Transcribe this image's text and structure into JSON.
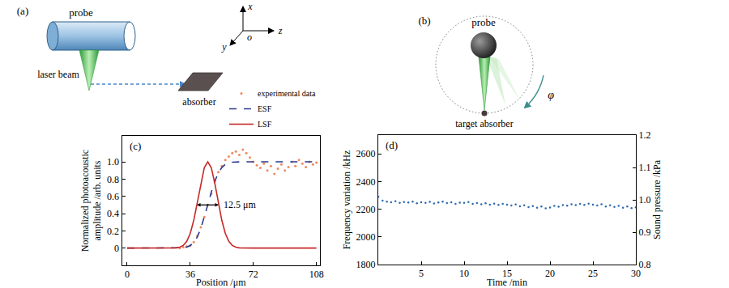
{
  "chart_data": [
    {
      "type": "line",
      "panel_label": "(c)",
      "x_label": "Position /μm",
      "y_label": "Normalized photoacoustic\namplitude /arb. units",
      "xlim": [
        -3,
        110
      ],
      "xticks": [
        0,
        36,
        72,
        108
      ],
      "ylim": [
        -0.2,
        1.3
      ],
      "yticks": [
        0,
        0.2,
        0.4,
        0.6,
        0.8,
        {
          "value": 1,
          "label": "1.0"
        }
      ],
      "grid": false,
      "legend": "top right",
      "series": [
        {
          "name": "experimental data",
          "type": "scatter",
          "marker": "dot",
          "color": "#f08a5d",
          "x": [
            30,
            32,
            34,
            36,
            38,
            40,
            42,
            44,
            46,
            48,
            50,
            52,
            54,
            56,
            58,
            60,
            62,
            64,
            66,
            68,
            70,
            72,
            74,
            76,
            78,
            80,
            82,
            84,
            86,
            88,
            90,
            92,
            94,
            96,
            98,
            100,
            102,
            104,
            106,
            108
          ],
          "values": [
            0,
            0.01,
            0.02,
            0.03,
            0.07,
            0.14,
            0.24,
            0.36,
            0.5,
            0.63,
            0.78,
            0.88,
            0.95,
            1.02,
            1.06,
            1.1,
            1.12,
            1.08,
            1.14,
            1.1,
            1.05,
            1.0,
            0.96,
            0.93,
            0.98,
            0.9,
            0.95,
            0.86,
            0.92,
            0.97,
            0.9,
            0.94,
            1.0,
            0.95,
            1.02,
            0.98,
            0.94,
            1.0,
            0.97,
            0.99
          ]
        },
        {
          "name": "ESF",
          "type": "line",
          "line_style": "dashed",
          "color": "#2a3a8c",
          "x": [
            0,
            10,
            20,
            26,
            28,
            30,
            32,
            34,
            36,
            38,
            40,
            42,
            44,
            46,
            48,
            50,
            52,
            54,
            56,
            58,
            60,
            62,
            64,
            66,
            72,
            80,
            90,
            100,
            108
          ],
          "values": [
            0,
            0,
            0,
            0,
            0,
            0.001,
            0.004,
            0.012,
            0.03,
            0.066,
            0.129,
            0.226,
            0.353,
            0.5,
            0.647,
            0.774,
            0.871,
            0.934,
            0.97,
            0.988,
            0.996,
            0.999,
            1,
            1,
            1,
            1,
            1,
            1,
            1
          ]
        },
        {
          "name": "LSF",
          "type": "line",
          "line_style": "solid",
          "color": "#c62828",
          "x": [
            0,
            10,
            20,
            26,
            28,
            30,
            32,
            34,
            36,
            38,
            40,
            42,
            44,
            46,
            48,
            50,
            52,
            54,
            56,
            58,
            60,
            62,
            64,
            66,
            72,
            80,
            90,
            100,
            108
          ],
          "values": [
            0,
            0,
            0,
            0.001,
            0.003,
            0.011,
            0.031,
            0.078,
            0.17,
            0.322,
            0.528,
            0.753,
            0.932,
            1,
            0.932,
            0.753,
            0.528,
            0.322,
            0.17,
            0.078,
            0.031,
            0.011,
            0.003,
            0.001,
            0,
            0,
            0,
            0,
            0
          ]
        }
      ],
      "annotations": [
        {
          "text": "12.5 μm",
          "x_from": 39.75,
          "x_to": 52.25,
          "y": 0.5
        }
      ]
    },
    {
      "type": "scatter",
      "panel_label": "(d)",
      "x_label": "Time /min",
      "y_label": "Frequency variation /kHz",
      "y2_label": "Sound pressure /kPa",
      "xlim": [
        0,
        30
      ],
      "xticks": [
        5,
        10,
        15,
        20,
        25,
        30
      ],
      "ylim": [
        1800,
        2735
      ],
      "yticks": [
        1800,
        2000,
        2200,
        2400,
        2600
      ],
      "y2lim": [
        0.8,
        1.2
      ],
      "y2ticks": [
        0.8,
        0.9,
        {
          "value": 1,
          "label": "1.0"
        },
        1.1,
        1.2
      ],
      "grid": false,
      "series": [
        {
          "marker": "dot",
          "color": "#2e6bb0",
          "x": [
            0,
            0.5,
            1,
            1.5,
            2,
            2.5,
            3,
            3.5,
            4,
            4.5,
            5,
            5.5,
            6,
            6.5,
            7,
            7.5,
            8,
            8.5,
            9,
            9.5,
            10,
            10.5,
            11,
            11.5,
            12,
            12.5,
            13,
            13.5,
            14,
            14.5,
            15,
            15.5,
            16,
            16.5,
            17,
            17.5,
            18,
            18.5,
            19,
            19.5,
            20,
            20.5,
            21,
            21.5,
            22,
            22.5,
            23,
            23.5,
            24,
            24.5,
            25,
            25.5,
            26,
            26.5,
            27,
            27.5,
            28,
            28.5,
            29,
            29.5,
            30
          ],
          "values": [
            2290,
            2262,
            2255,
            2250,
            2258,
            2246,
            2252,
            2249,
            2255,
            2243,
            2250,
            2246,
            2253,
            2241,
            2248,
            2255,
            2244,
            2250,
            2239,
            2247,
            2245,
            2252,
            2238,
            2244,
            2236,
            2242,
            2233,
            2240,
            2231,
            2238,
            2232,
            2226,
            2234,
            2221,
            2228,
            2215,
            2222,
            2210,
            2219,
            2206,
            2212,
            2224,
            2218,
            2230,
            2225,
            2236,
            2229,
            2238,
            2231,
            2240,
            2232,
            2226,
            2235,
            2220,
            2228,
            2216,
            2224,
            2211,
            2219,
            2207,
            2214
          ]
        }
      ]
    }
  ],
  "diagram_a": {
    "label": "(a)",
    "probe": "probe",
    "laser_beam": "laser beam",
    "absorber": "absorber",
    "axes": {
      "x": "x",
      "y": "y",
      "z": "z",
      "origin": "o"
    }
  },
  "diagram_b": {
    "label": "(b)",
    "probe": "probe",
    "target": "target absorber",
    "angle": "φ"
  }
}
